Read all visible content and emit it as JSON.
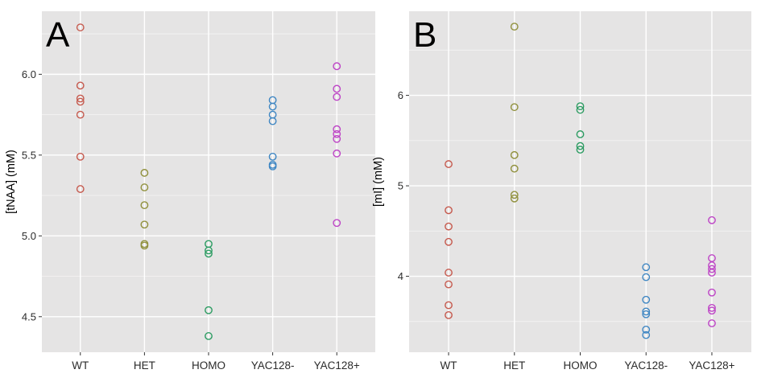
{
  "style": {
    "figure_bg": "#FFFFFF",
    "panel_bg": "#E5E4E4",
    "grid_major_color": "#FFFFFF",
    "grid_minor_color": "#FFFFFF",
    "tick_color": "#333333",
    "tick_label_color": "#2B2B2B",
    "axis_title_color": "#000000",
    "panel_label_color": "#000000"
  },
  "chart_data": [
    {
      "type": "scatter",
      "panel_label": "A",
      "title": "",
      "xlabel": "",
      "ylabel": "[tNAA] (mM)",
      "categories": [
        "WT",
        "HET",
        "HOMO",
        "YAC128-",
        "YAC128+"
      ],
      "y_ticks": {
        "labels": [
          "4.5",
          "5.0",
          "5.5",
          "6.0"
        ],
        "values": [
          4.5,
          5.0,
          5.5,
          6.0
        ]
      },
      "y_minor": [
        4.75,
        5.25,
        5.75,
        6.25
      ],
      "ylim": [
        4.28,
        6.39
      ],
      "grid": true,
      "legend": "none",
      "marker": "open-circle",
      "series": [
        {
          "name": "WT",
          "color": "#C6594D",
          "values": [
            6.29,
            5.93,
            5.85,
            5.83,
            5.75,
            5.49,
            5.29
          ]
        },
        {
          "name": "HET",
          "color": "#90903C",
          "values": [
            5.39,
            5.3,
            5.19,
            5.07,
            4.95,
            4.94
          ]
        },
        {
          "name": "HOMO",
          "color": "#2C9C62",
          "values": [
            4.95,
            4.91,
            4.89,
            4.54,
            4.38
          ]
        },
        {
          "name": "YAC128-",
          "color": "#3E86C3",
          "values": [
            5.84,
            5.8,
            5.75,
            5.71,
            5.49,
            5.44,
            5.43
          ]
        },
        {
          "name": "YAC128+",
          "color": "#BE44C6",
          "values": [
            6.05,
            5.91,
            5.86,
            5.66,
            5.63,
            5.6,
            5.51,
            5.08
          ]
        }
      ]
    },
    {
      "type": "scatter",
      "panel_label": "B",
      "title": "",
      "xlabel": "",
      "ylabel": "[mI] (mM)",
      "categories": [
        "WT",
        "HET",
        "HOMO",
        "YAC128-",
        "YAC128+"
      ],
      "y_ticks": {
        "labels": [
          "4",
          "5",
          "6"
        ],
        "values": [
          4,
          5,
          6
        ]
      },
      "y_minor": [
        3.5,
        4.5,
        5.5,
        6.5
      ],
      "ylim": [
        3.16,
        6.93
      ],
      "grid": true,
      "legend": "none",
      "marker": "open-circle",
      "series": [
        {
          "name": "WT",
          "color": "#C6594D",
          "values": [
            5.24,
            4.73,
            4.55,
            4.38,
            4.04,
            3.91,
            3.68,
            3.57
          ]
        },
        {
          "name": "HET",
          "color": "#90903C",
          "values": [
            6.76,
            5.87,
            5.34,
            5.19,
            4.9,
            4.86
          ]
        },
        {
          "name": "HOMO",
          "color": "#2C9C62",
          "values": [
            5.88,
            5.84,
            5.57,
            5.44,
            5.4
          ]
        },
        {
          "name": "YAC128-",
          "color": "#3E86C3",
          "values": [
            4.1,
            3.99,
            3.74,
            3.61,
            3.58,
            3.41,
            3.35
          ]
        },
        {
          "name": "YAC128+",
          "color": "#BE44C6",
          "values": [
            4.62,
            4.2,
            4.12,
            4.08,
            4.04,
            3.82,
            3.65,
            3.62,
            3.48
          ]
        }
      ]
    }
  ]
}
